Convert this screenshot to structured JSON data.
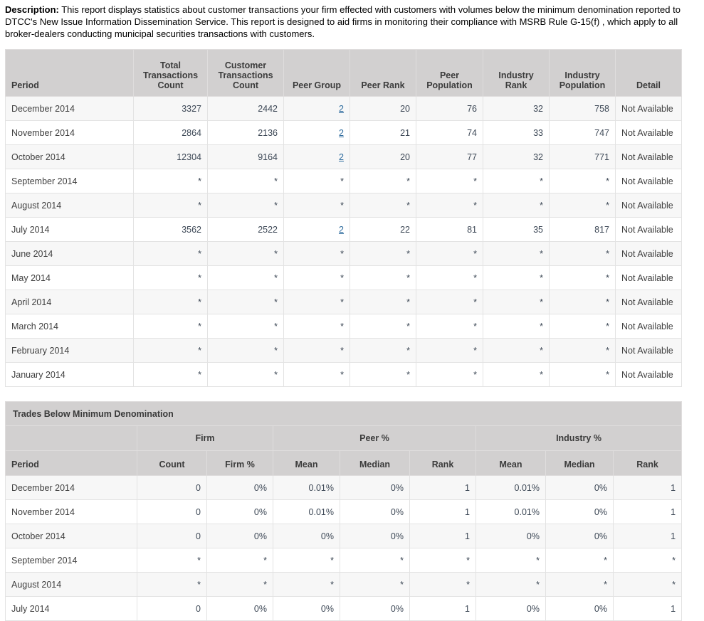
{
  "description": {
    "label": "Description:",
    "text": "This report displays statistics about customer transactions your firm effected with customers with volumes below the minimum denomination reported to DTCC's New Issue Information Dissemination Service. This report is designed to aid firms in monitoring their compliance with MSRB Rule G-15(f) , which apply to all broker-dealers conducting municipal securities transactions with customers."
  },
  "colors": {
    "header_bg": "#d2d0d0",
    "row_alt_bg": "#f7f7f7",
    "link": "#2f6c9e",
    "table_border": "#c9c9c9"
  },
  "transactions_table": {
    "columns": [
      "Period",
      "Total Transactions Count",
      "Customer Transactions Count",
      "Peer Group",
      "Peer Rank",
      "Peer Population",
      "Industry Rank",
      "Industry Population",
      "Detail"
    ],
    "rows": [
      {
        "period": "December 2014",
        "values": [
          "3327",
          "2442",
          "2",
          "20",
          "76",
          "32",
          "758"
        ],
        "detail": "Not Available",
        "peer_group_is_link": true
      },
      {
        "period": "November 2014",
        "values": [
          "2864",
          "2136",
          "2",
          "21",
          "74",
          "33",
          "747"
        ],
        "detail": "Not Available",
        "peer_group_is_link": true
      },
      {
        "period": "October 2014",
        "values": [
          "12304",
          "9164",
          "2",
          "20",
          "77",
          "32",
          "771"
        ],
        "detail": "Not Available",
        "peer_group_is_link": true
      },
      {
        "period": "September 2014",
        "values": [
          "*",
          "*",
          "*",
          "*",
          "*",
          "*",
          "*"
        ],
        "detail": "Not Available",
        "peer_group_is_link": false
      },
      {
        "period": "August 2014",
        "values": [
          "*",
          "*",
          "*",
          "*",
          "*",
          "*",
          "*"
        ],
        "detail": "Not Available",
        "peer_group_is_link": false
      },
      {
        "period": "July 2014",
        "values": [
          "3562",
          "2522",
          "2",
          "22",
          "81",
          "35",
          "817"
        ],
        "detail": "Not Available",
        "peer_group_is_link": true
      },
      {
        "period": "June 2014",
        "values": [
          "*",
          "*",
          "*",
          "*",
          "*",
          "*",
          "*"
        ],
        "detail": "Not Available",
        "peer_group_is_link": false
      },
      {
        "period": "May 2014",
        "values": [
          "*",
          "*",
          "*",
          "*",
          "*",
          "*",
          "*"
        ],
        "detail": "Not Available",
        "peer_group_is_link": false
      },
      {
        "period": "April 2014",
        "values": [
          "*",
          "*",
          "*",
          "*",
          "*",
          "*",
          "*"
        ],
        "detail": "Not Available",
        "peer_group_is_link": false
      },
      {
        "period": "March 2014",
        "values": [
          "*",
          "*",
          "*",
          "*",
          "*",
          "*",
          "*"
        ],
        "detail": "Not Available",
        "peer_group_is_link": false
      },
      {
        "period": "February 2014",
        "values": [
          "*",
          "*",
          "*",
          "*",
          "*",
          "*",
          "*"
        ],
        "detail": "Not Available",
        "peer_group_is_link": false
      },
      {
        "period": "January 2014",
        "values": [
          "*",
          "*",
          "*",
          "*",
          "*",
          "*",
          "*"
        ],
        "detail": "Not Available",
        "peer_group_is_link": false
      }
    ]
  },
  "trades_table": {
    "title": "Trades Below Minimum Denomination",
    "group_headers": [
      {
        "label": "Firm",
        "span": 2
      },
      {
        "label": "Peer %",
        "span": 3
      },
      {
        "label": "Industry %",
        "span": 3
      }
    ],
    "columns": [
      "Period",
      "Count",
      "Firm %",
      "Mean",
      "Median",
      "Rank",
      "Mean",
      "Median",
      "Rank"
    ],
    "rows": [
      {
        "period": "December 2014",
        "values": [
          "0",
          "0%",
          "0.01%",
          "0%",
          "1",
          "0.01%",
          "0%",
          "1"
        ]
      },
      {
        "period": "November 2014",
        "values": [
          "0",
          "0%",
          "0.01%",
          "0%",
          "1",
          "0.01%",
          "0%",
          "1"
        ]
      },
      {
        "period": "October 2014",
        "values": [
          "0",
          "0%",
          "0%",
          "0%",
          "1",
          "0%",
          "0%",
          "1"
        ]
      },
      {
        "period": "September 2014",
        "values": [
          "*",
          "*",
          "*",
          "*",
          "*",
          "*",
          "*",
          "*"
        ]
      },
      {
        "period": "August 2014",
        "values": [
          "*",
          "*",
          "*",
          "*",
          "*",
          "*",
          "*",
          "*"
        ]
      },
      {
        "period": "July 2014",
        "values": [
          "0",
          "0%",
          "0%",
          "0%",
          "1",
          "0%",
          "0%",
          "1"
        ]
      }
    ]
  }
}
